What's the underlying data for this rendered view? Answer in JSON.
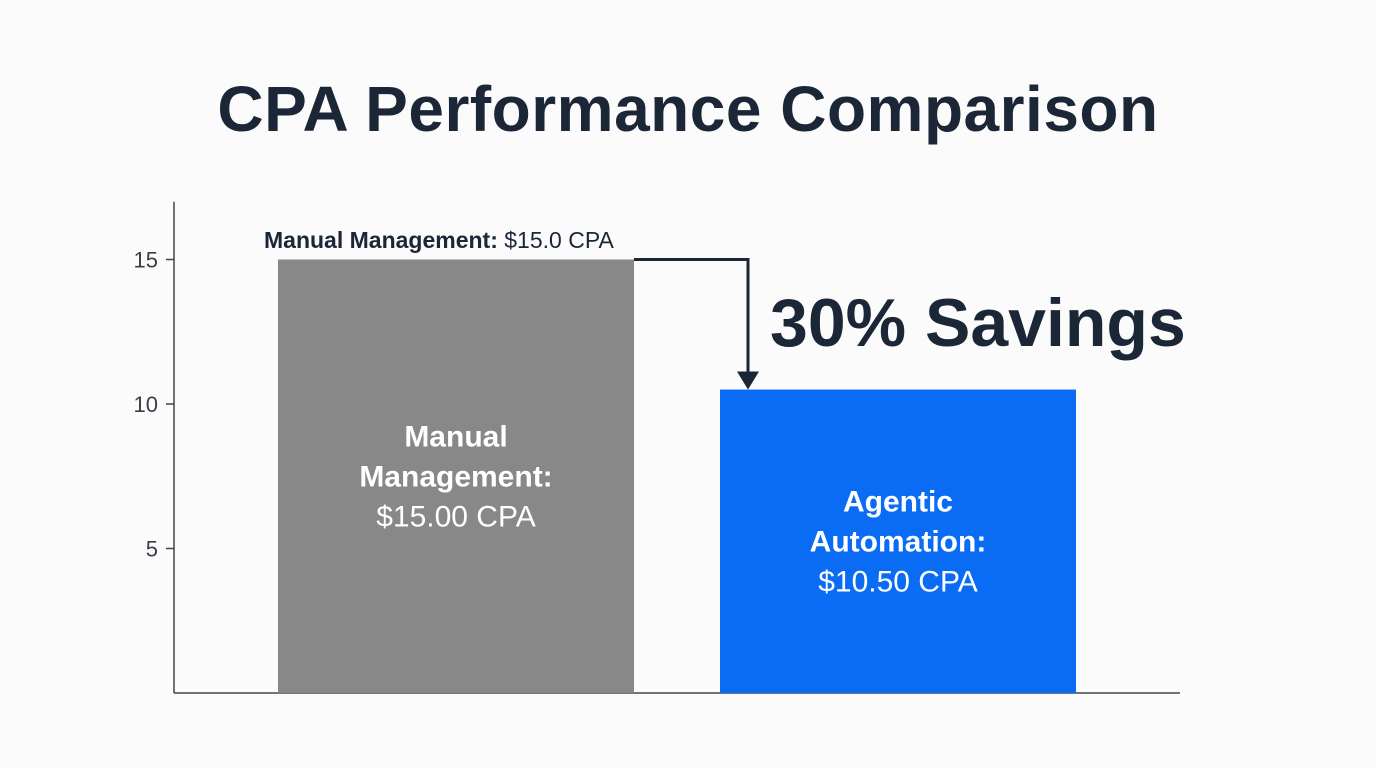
{
  "title": "CPA Performance Comparison",
  "chart_data": {
    "type": "bar",
    "title": "CPA Performance Comparison",
    "xlabel": "",
    "ylabel": "",
    "ylim": [
      0,
      17
    ],
    "yticks": [
      5,
      10,
      15
    ],
    "grid": false,
    "categories": [
      "Manual Management",
      "Agentic Automation"
    ],
    "values": [
      15.0,
      10.5
    ],
    "colors": [
      "#888888",
      "#0a6cf5"
    ],
    "bar_labels": [
      {
        "lines": [
          "Manual",
          "Management:"
        ],
        "value": "$15.00 CPA"
      },
      {
        "lines": [
          "Agentic",
          "Automation:"
        ],
        "value": "$10.50 CPA"
      }
    ],
    "top_annotation": {
      "bold": "Manual Management:",
      "regular": " $15.0 CPA"
    },
    "savings_annotation": "30% Savings"
  }
}
